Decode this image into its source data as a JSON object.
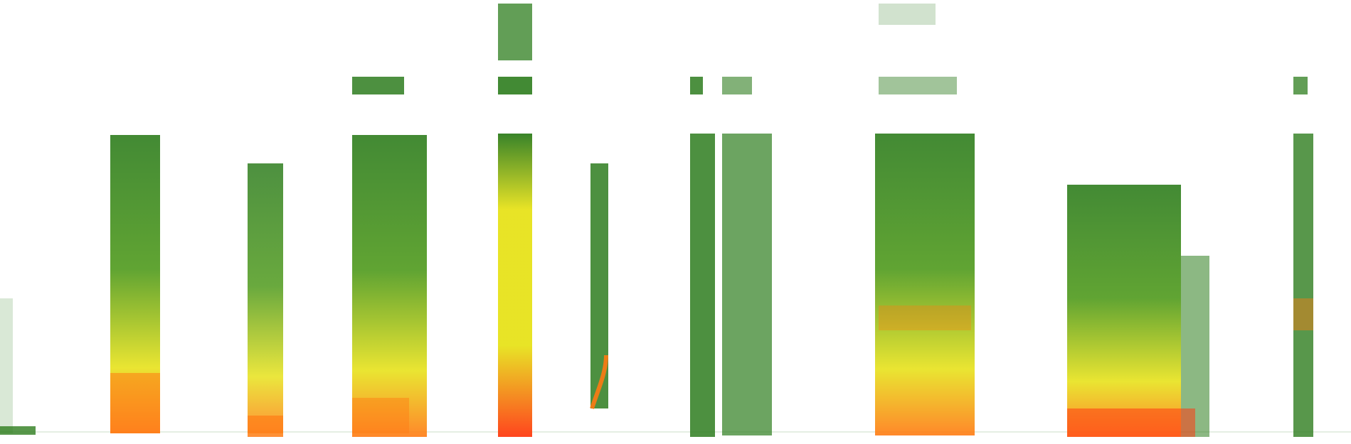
{
  "image": {
    "kind": "spectrogram",
    "background": "#ffffff",
    "palette": {
      "low": "#2e7d1e",
      "mid": "#4f9a1c",
      "high": "#e7e21b",
      "peak": "#ff7a12",
      "hot": "#ff3b12"
    }
  }
}
